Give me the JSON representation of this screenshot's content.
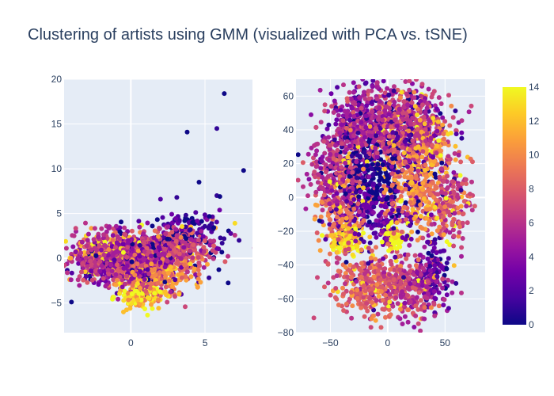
{
  "chart_data": {
    "title": "Clustering of artists using GMM (visualized with PCA vs. tSNE)",
    "type": "scatter",
    "colorscale": [
      "#0d0887",
      "#46039f",
      "#7201a8",
      "#9c179e",
      "#bd3786",
      "#d8576b",
      "#ed7953",
      "#fb9f3a",
      "#fdca26",
      "#f0f921"
    ],
    "colorbar": {
      "min": 0,
      "max": 14,
      "ticks": [
        "0",
        "2",
        "4",
        "6",
        "8",
        "10",
        "12",
        "14"
      ]
    },
    "subplots": [
      {
        "name": "PCA",
        "xlim": [
          -4.5,
          8.2
        ],
        "ylim": [
          -8.3,
          20
        ],
        "xticks": [
          {
            "v": 0,
            "label": "0"
          },
          {
            "v": 5,
            "label": "5"
          }
        ],
        "yticks": [
          {
            "v": -5,
            "label": "−5"
          },
          {
            "v": 0,
            "label": "0"
          },
          {
            "v": 5,
            "label": "5"
          },
          {
            "v": 10,
            "label": "10"
          },
          {
            "v": 15,
            "label": "15"
          },
          {
            "v": 20,
            "label": "20"
          }
        ],
        "outliers": [
          [
            6.3,
            18.4,
            0
          ],
          [
            5.8,
            14.5,
            1
          ],
          [
            3.8,
            14.1,
            0
          ],
          [
            7.6,
            9.8,
            0
          ],
          [
            4.6,
            8.5,
            0
          ],
          [
            5.8,
            7.0,
            1
          ],
          [
            6.0,
            6.9,
            0
          ],
          [
            3.1,
            6.8,
            1
          ],
          [
            7.3,
            2.0,
            1
          ],
          [
            2.0,
            6.6,
            2
          ]
        ],
        "clusters": [
          {
            "cx": -1.5,
            "cy": 0.3,
            "sx": 1.2,
            "sy": 1.3,
            "c": 6,
            "n": 380
          },
          {
            "cx": 0.5,
            "cy": 0.2,
            "sx": 1.4,
            "sy": 1.5,
            "c": 5,
            "n": 380
          },
          {
            "cx": 3.0,
            "cy": 1.3,
            "sx": 1.4,
            "sy": 1.1,
            "c": 7,
            "n": 340
          },
          {
            "cx": 1.3,
            "cy": -2.0,
            "sx": 1.2,
            "sy": 1.2,
            "c": 9,
            "n": 220
          },
          {
            "cx": 0.8,
            "cy": -4.2,
            "sx": 0.8,
            "sy": 0.8,
            "c": 13,
            "n": 160
          },
          {
            "cx": -0.5,
            "cy": -1.0,
            "sx": 1.5,
            "sy": 1.2,
            "c": 3,
            "n": 140
          },
          {
            "cx": 3.8,
            "cy": 3.0,
            "sx": 1.3,
            "sy": 1.0,
            "c": 1,
            "n": 130
          },
          {
            "cx": -2.0,
            "cy": 1.0,
            "sx": 1.0,
            "sy": 0.9,
            "c": 12,
            "n": 80
          },
          {
            "cx": 2.5,
            "cy": -1.5,
            "sx": 1.5,
            "sy": 1.0,
            "c": 11,
            "n": 120
          },
          {
            "cx": 0.5,
            "cy": -0.5,
            "sx": 2.5,
            "sy": 1.8,
            "c": 0,
            "n": 90
          }
        ]
      },
      {
        "name": "tSNE",
        "xlim": [
          -80,
          85
        ],
        "ylim": [
          -80,
          70
        ],
        "xticks": [
          {
            "v": -50,
            "label": "−50"
          },
          {
            "v": 0,
            "label": "0"
          },
          {
            "v": 50,
            "label": "50"
          }
        ],
        "yticks": [
          {
            "v": -80,
            "label": "−80"
          },
          {
            "v": -60,
            "label": "−60"
          },
          {
            "v": -40,
            "label": "−40"
          },
          {
            "v": -20,
            "label": "−20"
          },
          {
            "v": 0,
            "label": "0"
          },
          {
            "v": 20,
            "label": "20"
          },
          {
            "v": 40,
            "label": "40"
          },
          {
            "v": 60,
            "label": "60"
          }
        ],
        "outliers": [],
        "clusters": [
          {
            "cx": -20,
            "cy": 45,
            "sx": 16,
            "sy": 12,
            "c": 5,
            "n": 420
          },
          {
            "cx": 20,
            "cy": 42,
            "sx": 18,
            "sy": 12,
            "c": 6,
            "n": 380
          },
          {
            "cx": -45,
            "cy": 15,
            "sx": 12,
            "sy": 12,
            "c": 6,
            "n": 260
          },
          {
            "cx": -15,
            "cy": 10,
            "sx": 15,
            "sy": 12,
            "c": 0,
            "n": 200
          },
          {
            "cx": 25,
            "cy": 5,
            "sx": 15,
            "sy": 12,
            "c": 10,
            "n": 280
          },
          {
            "cx": 55,
            "cy": 0,
            "sx": 10,
            "sy": 12,
            "c": 7,
            "n": 200
          },
          {
            "cx": -35,
            "cy": -25,
            "sx": 8,
            "sy": 5,
            "c": 13,
            "n": 110
          },
          {
            "cx": 5,
            "cy": -23,
            "sx": 5,
            "sy": 4,
            "c": 14,
            "n": 70
          },
          {
            "cx": -10,
            "cy": -10,
            "sx": 20,
            "sy": 10,
            "c": 3,
            "n": 220
          },
          {
            "cx": -12,
            "cy": -52,
            "sx": 18,
            "sy": 10,
            "c": 8,
            "n": 380
          },
          {
            "cx": 25,
            "cy": -52,
            "sx": 12,
            "sy": 10,
            "c": 6,
            "n": 220
          },
          {
            "cx": 40,
            "cy": -45,
            "sx": 8,
            "sy": 8,
            "c": 2,
            "n": 120
          },
          {
            "cx": 0,
            "cy": 35,
            "sx": 25,
            "sy": 15,
            "c": 1,
            "n": 200
          },
          {
            "cx": 30,
            "cy": 30,
            "sx": 15,
            "sy": 10,
            "c": 11,
            "n": 150
          },
          {
            "cx": -40,
            "cy": -10,
            "sx": 10,
            "sy": 10,
            "c": 9,
            "n": 150
          }
        ]
      }
    ]
  }
}
